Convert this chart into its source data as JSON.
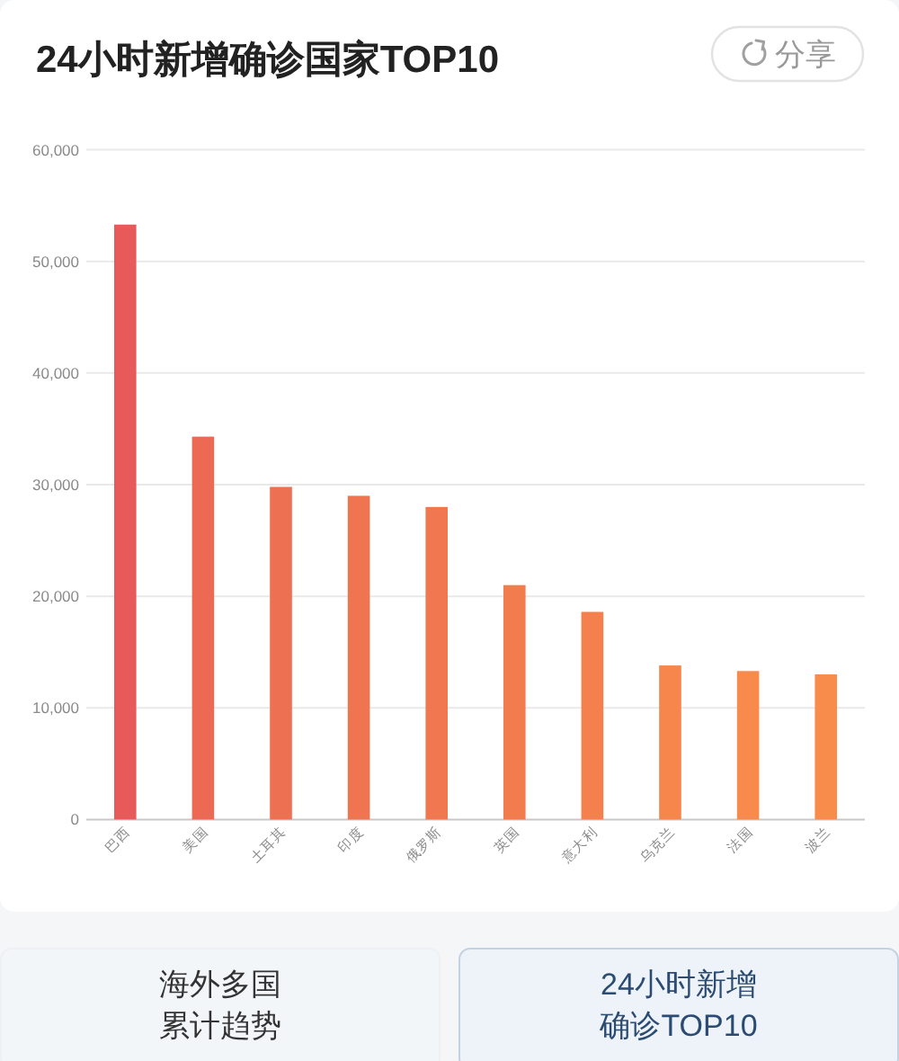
{
  "chart_data": {
    "type": "bar",
    "title": "24小时新增确诊国家TOP10",
    "categories": [
      "巴西",
      "美国",
      "土耳其",
      "印度",
      "俄罗斯",
      "英国",
      "意大利",
      "乌克兰",
      "法国",
      "波兰"
    ],
    "values": [
      53300,
      34300,
      29800,
      29000,
      28000,
      21000,
      18600,
      13800,
      13300,
      13000
    ],
    "colors": [
      "#e85a5a",
      "#ec6954",
      "#ee7052",
      "#ef7450",
      "#f0774f",
      "#f27c4e",
      "#f4814d",
      "#f6864c",
      "#f78a4c",
      "#f88d4b"
    ],
    "ylim": [
      0,
      60000
    ],
    "yticks": [
      0,
      {
        "value": 10000,
        "label": "10,000"
      },
      {
        "value": 20000,
        "label": "20,000"
      },
      {
        "value": 30000,
        "label": "30,000"
      },
      {
        "value": 40000,
        "label": "40,000"
      },
      {
        "value": 50000,
        "label": "50,000"
      },
      {
        "value": 60000,
        "label": "60,000"
      }
    ],
    "grid": "y",
    "annotations": [
      "分享",
      "海外多国",
      "累计趋势",
      "24小时新增",
      "确诊TOP10"
    ]
  }
}
